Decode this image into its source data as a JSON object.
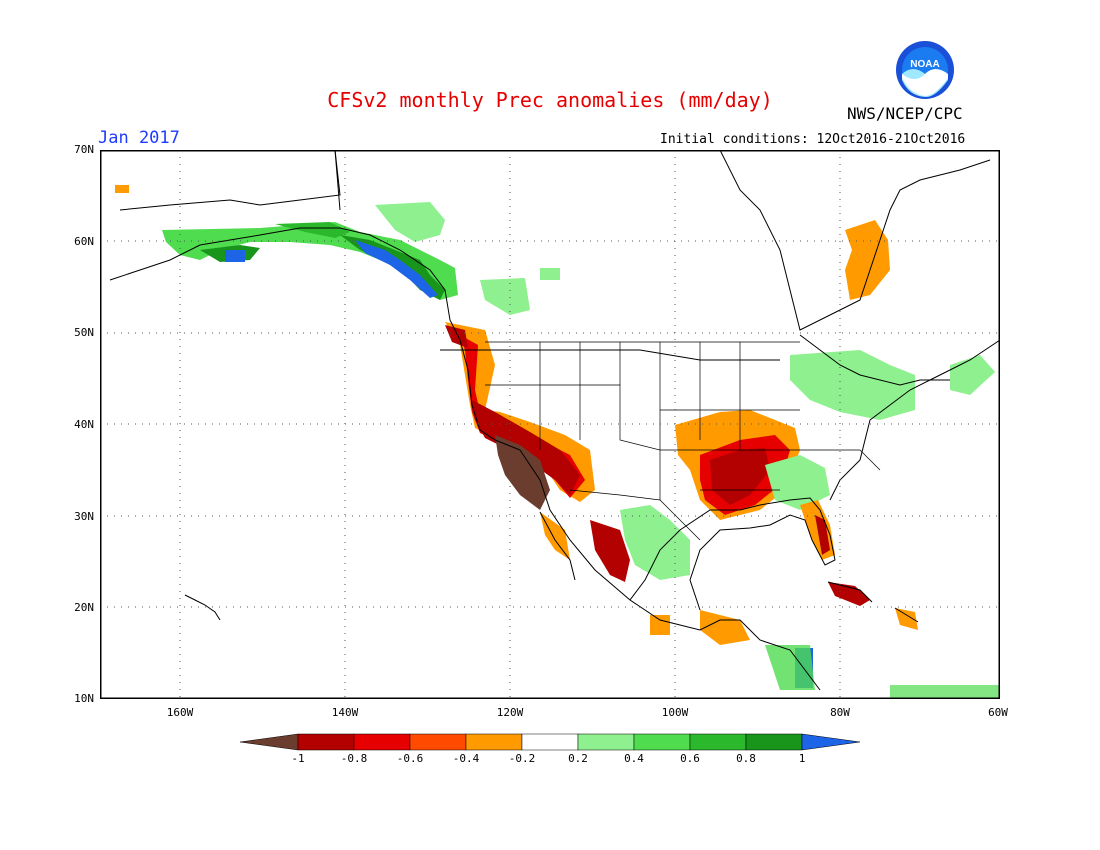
{
  "header": {
    "title": "CFSv2 monthly Prec anomalies (mm/day)",
    "valid_month": "Jan 2017",
    "initial_conditions": "Initial conditions: 12Oct2016-21Oct2016",
    "agency": "NWS/NCEP/CPC",
    "logo_text": "NOAA"
  },
  "axes": {
    "lat_labels": [
      "70N",
      "60N",
      "50N",
      "40N",
      "30N",
      "20N",
      "10N"
    ],
    "lon_labels": [
      "160W",
      "140W",
      "120W",
      "100W",
      "80W",
      "60W"
    ]
  },
  "colorbar": {
    "tick_labels": [
      "-1",
      "-0.8",
      "-0.6",
      "-0.4",
      "-0.2",
      "0.2",
      "0.4",
      "0.6",
      "0.8",
      "1"
    ],
    "colors": [
      "#6b3d2e",
      "#b30000",
      "#e60000",
      "#ff4a00",
      "#ff9a00",
      "#ffffff",
      "#8ef08e",
      "#4fdc4f",
      "#2cb82c",
      "#18951a",
      "#1e64e6"
    ]
  },
  "map_icons": [
    "continent-outline",
    "state-borders",
    "gridlines"
  ]
}
